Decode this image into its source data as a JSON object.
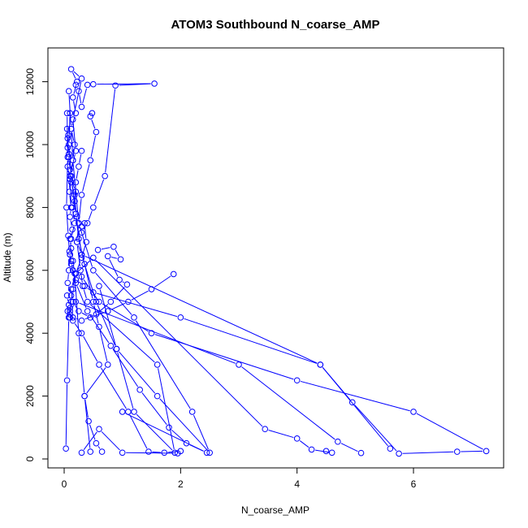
{
  "chart_data": {
    "type": "scatter",
    "title": "ATOM3 Southbound N_coarse_AMP",
    "xlabel": "N_coarse_AMP",
    "ylabel": "Altitude (m)",
    "xlim": [
      0,
      7.5
    ],
    "ylim": [
      0,
      12800
    ],
    "x_ticks": [
      "0",
      "2",
      "4",
      "6"
    ],
    "x_tick_values": [
      0,
      2,
      4,
      6
    ],
    "y_ticks": [
      "0",
      "2000",
      "4000",
      "6000",
      "8000",
      "10000",
      "12000"
    ],
    "y_tick_values": [
      0,
      2000,
      4000,
      6000,
      8000,
      10000,
      12000
    ],
    "grid": false,
    "series_color": "#0000ff",
    "marker": "open-circle",
    "connected": true,
    "series": [
      {
        "x": [
          0.03,
          0.05,
          0.08,
          0.1,
          0.12,
          0.06,
          0.08,
          0.1,
          0.12,
          0.18,
          0.14,
          0.2,
          0.1,
          0.15,
          0.18,
          0.12,
          0.2,
          0.15,
          0.22,
          0.12,
          0.3,
          0.15,
          0.2,
          0.1,
          0.12
        ],
        "y": [
          330,
          2500,
          4500,
          4800,
          5200,
          5600,
          6000,
          6500,
          7000,
          7500,
          8000,
          8500,
          9000,
          9500,
          10000,
          10500,
          11000,
          11500,
          12000,
          12400,
          12100,
          10800,
          9800,
          9000,
          8000
        ]
      },
      {
        "x": [
          0.05,
          0.06,
          0.08,
          0.06,
          0.1,
          0.09,
          0.12,
          0.1,
          0.14,
          0.1,
          0.12,
          0.15,
          0.18,
          0.25,
          0.35,
          0.45
        ],
        "y": [
          10500,
          10200,
          9700,
          9300,
          8900,
          8500,
          8000,
          7700,
          7300,
          7000,
          6700,
          6300,
          5900,
          4000,
          2000,
          230
        ]
      },
      {
        "x": [
          0.08,
          0.12,
          0.15,
          0.25,
          0.5,
          1.2,
          2.2,
          2.5,
          1.6,
          0.9,
          0.55,
          0.3,
          0.2,
          0.12,
          0.08,
          0.1
        ],
        "y": [
          11700,
          10500,
          9500,
          7500,
          6000,
          4500,
          1500,
          200,
          2000,
          3500,
          5000,
          6500,
          7800,
          9000,
          10000,
          11000
        ]
      },
      {
        "x": [
          0.2,
          0.25,
          0.3,
          0.4,
          0.5,
          1.55,
          0.88,
          0.7,
          0.5,
          0.4,
          0.3,
          0.22,
          0.3,
          4.4,
          5.6
        ],
        "y": [
          11900,
          11700,
          11200,
          11900,
          11920,
          11940,
          11880,
          9000,
          8000,
          7500,
          7200,
          6900,
          6500,
          3000,
          330
        ]
      },
      {
        "x": [
          0.48,
          0.45,
          0.55,
          0.45,
          0.3,
          0.25,
          0.22,
          0.28,
          0.32,
          0.4,
          1.6,
          1.9,
          1.2,
          0.9,
          0.6
        ],
        "y": [
          11000,
          10900,
          10400,
          9500,
          8400,
          7500,
          6900,
          6000,
          5500,
          5000,
          3000,
          200,
          1500,
          3500,
          5500
        ]
      },
      {
        "x": [
          0.58,
          0.85,
          0.97,
          0.75,
          0.95,
          1.08,
          0.8,
          0.55,
          0.3,
          0.15,
          0.1,
          0.2,
          3.0,
          4.7,
          5.1
        ],
        "y": [
          6650,
          6750,
          6350,
          6450,
          5700,
          5550,
          5000,
          4600,
          4400,
          4500,
          4700,
          5000,
          3000,
          550,
          190
        ]
      },
      {
        "x": [
          1.88,
          1.5,
          1.1,
          0.75,
          0.45,
          0.25,
          0.15,
          0.12,
          0.2,
          0.5,
          3.45,
          4.0,
          4.25,
          4.6,
          4.5
        ],
        "y": [
          5880,
          5400,
          5000,
          4700,
          4500,
          4700,
          5000,
          5400,
          5900,
          6400,
          950,
          650,
          300,
          200,
          250
        ]
      },
      {
        "x": [
          0.05,
          0.08,
          0.06,
          0.1,
          0.15,
          0.3,
          0.6,
          1.1,
          1.45,
          1.72,
          2.0,
          1.95,
          1.0,
          0.6,
          0.3
        ],
        "y": [
          5200,
          4900,
          4700,
          4500,
          4400,
          4000,
          3000,
          1500,
          230,
          200,
          250,
          180,
          200,
          950,
          200
        ]
      },
      {
        "x": [
          0.1,
          0.12,
          0.15,
          0.2,
          0.35,
          0.5,
          2.0,
          4.4,
          4.95,
          5.75,
          6.75,
          7.25,
          6.0,
          4.0,
          1.5,
          0.6,
          0.3
        ],
        "y": [
          6500,
          6300,
          6000,
          5700,
          5500,
          5300,
          4500,
          3000,
          1800,
          170,
          230,
          250,
          1500,
          2500,
          4000,
          5000,
          5800
        ]
      },
      {
        "x": [
          0.07,
          0.06,
          0.08,
          0.1,
          0.12,
          0.18,
          0.2,
          0.25,
          0.35,
          0.5,
          0.6,
          0.75,
          0.35,
          0.42,
          0.55,
          0.65
        ],
        "y": [
          10300,
          9900,
          9600,
          9200,
          8800,
          8400,
          7800,
          7000,
          6200,
          5000,
          4200,
          3000,
          2000,
          1200,
          500,
          230
        ]
      },
      {
        "x": [
          0.05,
          0.06,
          0.04,
          0.07,
          0.09,
          0.12,
          0.2,
          0.4,
          0.8,
          1.3,
          1.8,
          2.1,
          2.45,
          1.0
        ],
        "y": [
          11000,
          9600,
          8000,
          7100,
          6600,
          6200,
          5600,
          4700,
          3600,
          2200,
          1000,
          500,
          200,
          1500
        ]
      },
      {
        "x": [
          0.3,
          0.25,
          0.2,
          0.18,
          0.22,
          0.3,
          0.35,
          0.38,
          0.3,
          0.2,
          0.15,
          0.12,
          0.1,
          0.08
        ],
        "y": [
          9800,
          9300,
          8800,
          8200,
          7700,
          7400,
          7500,
          6900,
          6400,
          5900,
          5400,
          5000,
          4600,
          4500
        ]
      }
    ]
  }
}
